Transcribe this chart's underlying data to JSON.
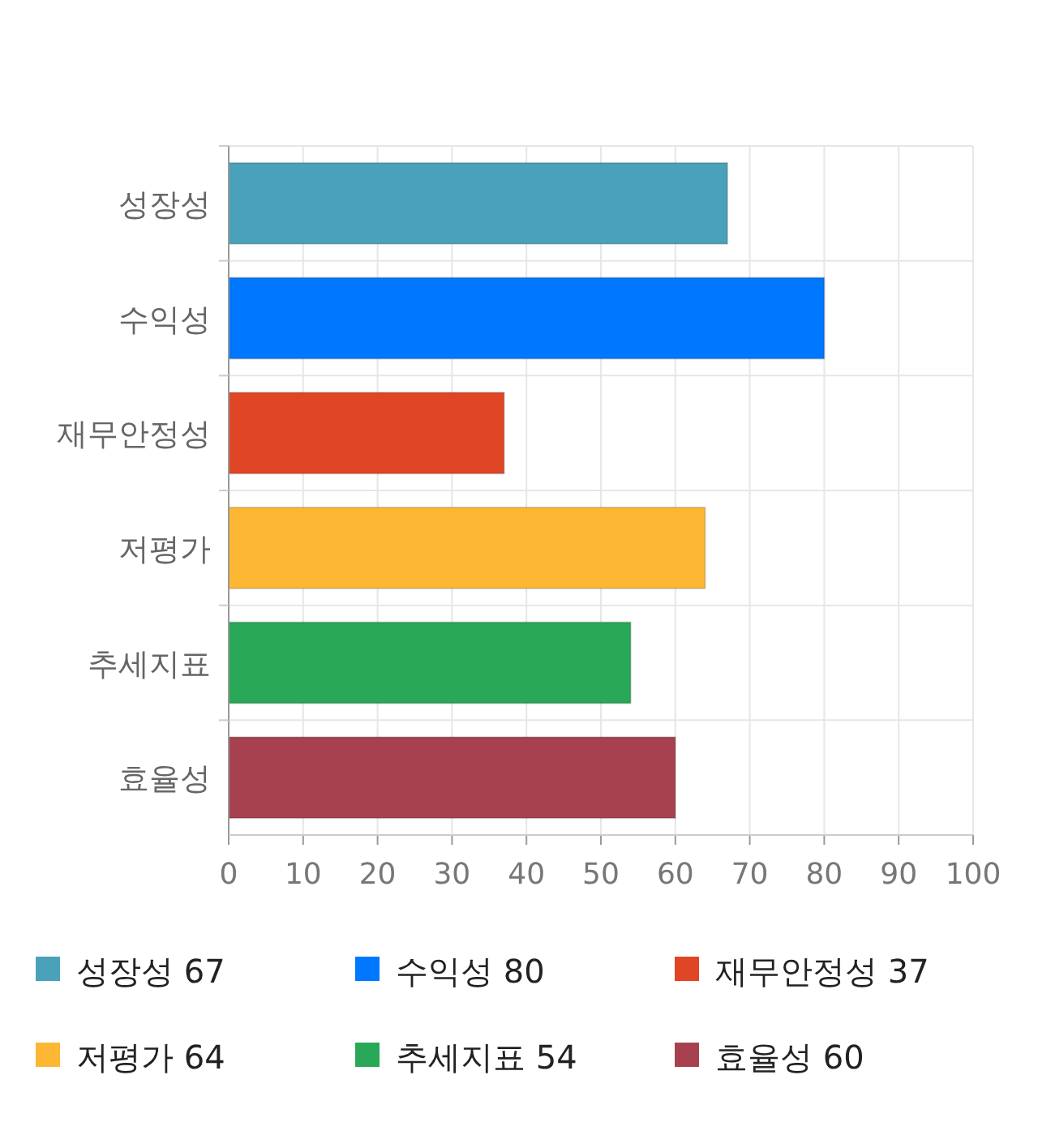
{
  "chart_data": {
    "type": "bar",
    "orientation": "horizontal",
    "categories": [
      "성장성",
      "수익성",
      "재무안정성",
      "저평가",
      "추세지표",
      "효율성"
    ],
    "series": [
      {
        "name": "성장성 67",
        "color": "#4aa1ba",
        "values": [
          67,
          null,
          null,
          null,
          null,
          null
        ]
      },
      {
        "name": "수익성 80",
        "color": "#0077ff",
        "values": [
          null,
          80,
          null,
          null,
          null,
          null
        ]
      },
      {
        "name": "재무안정성 37",
        "color": "#e04526",
        "values": [
          null,
          null,
          37,
          null,
          null,
          null
        ]
      },
      {
        "name": "저평가 64",
        "color": "#fdb733",
        "values": [
          null,
          null,
          null,
          64,
          null,
          null
        ]
      },
      {
        "name": "추세지표 54",
        "color": "#29a857",
        "values": [
          null,
          null,
          null,
          null,
          54,
          null
        ]
      },
      {
        "name": "효율성 60",
        "color": "#a8414f",
        "values": [
          null,
          null,
          null,
          null,
          null,
          60
        ]
      }
    ],
    "xlim": [
      0,
      100
    ],
    "xticks": [
      0,
      10,
      20,
      30,
      40,
      50,
      60,
      70,
      80,
      90,
      100
    ],
    "grid": true,
    "legend": "bottom"
  }
}
